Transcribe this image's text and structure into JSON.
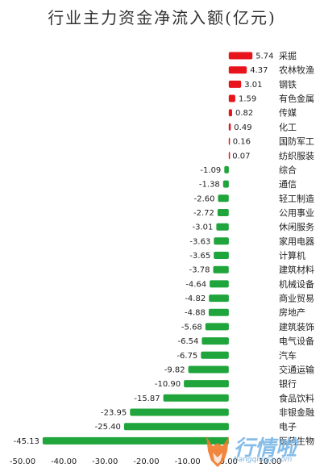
{
  "chart_data": {
    "type": "bar",
    "orientation": "horizontal",
    "title": "行业主力资金净流入额(亿元)",
    "categories": [
      "采掘",
      "农林牧渔",
      "钢铁",
      "有色金属",
      "传媒",
      "化工",
      "国防军工",
      "纺织服装",
      "综合",
      "通信",
      "轻工制造",
      "公用事业",
      "休闲服务",
      "家用电器",
      "计算机",
      "建筑材料",
      "机械设备",
      "商业贸易",
      "房地产",
      "建筑装饰",
      "电气设备",
      "汽车",
      "交通运输",
      "银行",
      "食品饮料",
      "非银金融",
      "电子",
      "医药生物"
    ],
    "values": [
      5.74,
      4.37,
      3.01,
      1.59,
      0.82,
      0.49,
      0.16,
      0.07,
      -1.09,
      -1.38,
      -2.6,
      -2.72,
      -3.01,
      -3.63,
      -3.65,
      -3.78,
      -4.64,
      -4.82,
      -4.88,
      -5.68,
      -6.54,
      -6.75,
      -9.82,
      -10.9,
      -15.87,
      -23.95,
      -25.4,
      -45.13
    ],
    "value_labels": [
      "5.74",
      "4.37",
      "3.01",
      "1.59",
      "0.82",
      "0.49",
      "0.16",
      "0.07",
      "-1.09",
      "-1.38",
      "-2.60",
      "-2.72",
      "-3.01",
      "-3.63",
      "-3.65",
      "-3.78",
      "-4.64",
      "-4.82",
      "-4.88",
      "-5.68",
      "-6.54",
      "-6.75",
      "-9.82",
      "-10.90",
      "-15.87",
      "-23.95",
      "-25.40",
      "-45.13"
    ],
    "xlim": [
      -50,
      10
    ],
    "xticks": [
      "-50.00",
      "-40.00",
      "-30.00",
      "-20.00",
      "-10.00",
      "0.00",
      "10.00"
    ],
    "xtick_values": [
      -50,
      -40,
      -30,
      -20,
      -10,
      0,
      10
    ],
    "grid": false,
    "colors": {
      "positive": "#e8141c",
      "negative": "#1fa53b"
    }
  },
  "watermark": {
    "text": "行情啦",
    "url": "hangqingla.com"
  }
}
